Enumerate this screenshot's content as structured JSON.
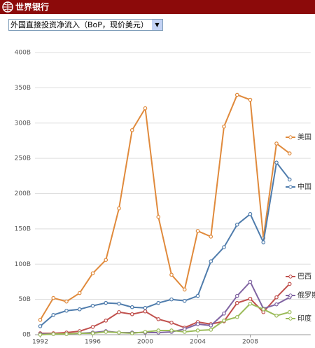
{
  "header": {
    "title": "世界银行"
  },
  "selector": {
    "label": "外国直接投资净流入（BoP，现价美元）"
  },
  "chart_data": {
    "type": "line",
    "x": [
      1992,
      1993,
      1994,
      1995,
      1996,
      1997,
      1998,
      1999,
      2000,
      2001,
      2002,
      2003,
      2004,
      2005,
      2006,
      2007,
      2008,
      2009,
      2010,
      2011
    ],
    "series": [
      {
        "name": "美国",
        "color": "#e08a3c",
        "values": [
          21,
          52,
          47,
          59,
          87,
          106,
          179,
          290,
          321,
          167,
          85,
          64,
          147,
          139,
          295,
          340,
          333,
          137,
          271,
          257
        ]
      },
      {
        "name": "中国",
        "color": "#4f7cac",
        "values": [
          12,
          28,
          34,
          36,
          41,
          45,
          44,
          39,
          38,
          45,
          50,
          48,
          55,
          104,
          124,
          156,
          171,
          131,
          244,
          220
        ]
      },
      {
        "name": "巴西",
        "color": "#c0504d",
        "values": [
          2,
          2,
          3,
          5,
          11,
          20,
          32,
          29,
          33,
          22,
          17,
          10,
          18,
          15,
          19,
          45,
          51,
          32,
          53,
          72
        ]
      },
      {
        "name": "俄罗斯",
        "color": "#8064a2",
        "values": [
          1,
          1,
          1,
          2,
          3,
          5,
          3,
          3,
          3,
          3,
          4,
          8,
          15,
          13,
          30,
          55,
          75,
          37,
          43,
          53
        ]
      },
      {
        "name": "印度",
        "color": "#9bbb59",
        "values": [
          0,
          1,
          1,
          2,
          2,
          4,
          3,
          2,
          4,
          6,
          6,
          4,
          6,
          7,
          20,
          25,
          44,
          36,
          27,
          32
        ]
      }
    ],
    "xlim": [
      1991.6,
      2012.6
    ],
    "xticks": [
      1992,
      1996,
      2000,
      2004,
      2008
    ],
    "ylim": [
      0,
      400
    ],
    "yticks": [
      {
        "value": 0,
        "label": "0B"
      },
      {
        "value": 50,
        "label": "50B"
      },
      {
        "value": 100,
        "label": "100B"
      },
      {
        "value": 150,
        "label": "150B"
      },
      {
        "value": 200,
        "label": "200B"
      },
      {
        "value": 250,
        "label": "250B"
      },
      {
        "value": 300,
        "label": "300B"
      },
      {
        "value": 350,
        "label": "350B"
      },
      {
        "value": 400,
        "label": "400B"
      }
    ],
    "grid": true
  }
}
